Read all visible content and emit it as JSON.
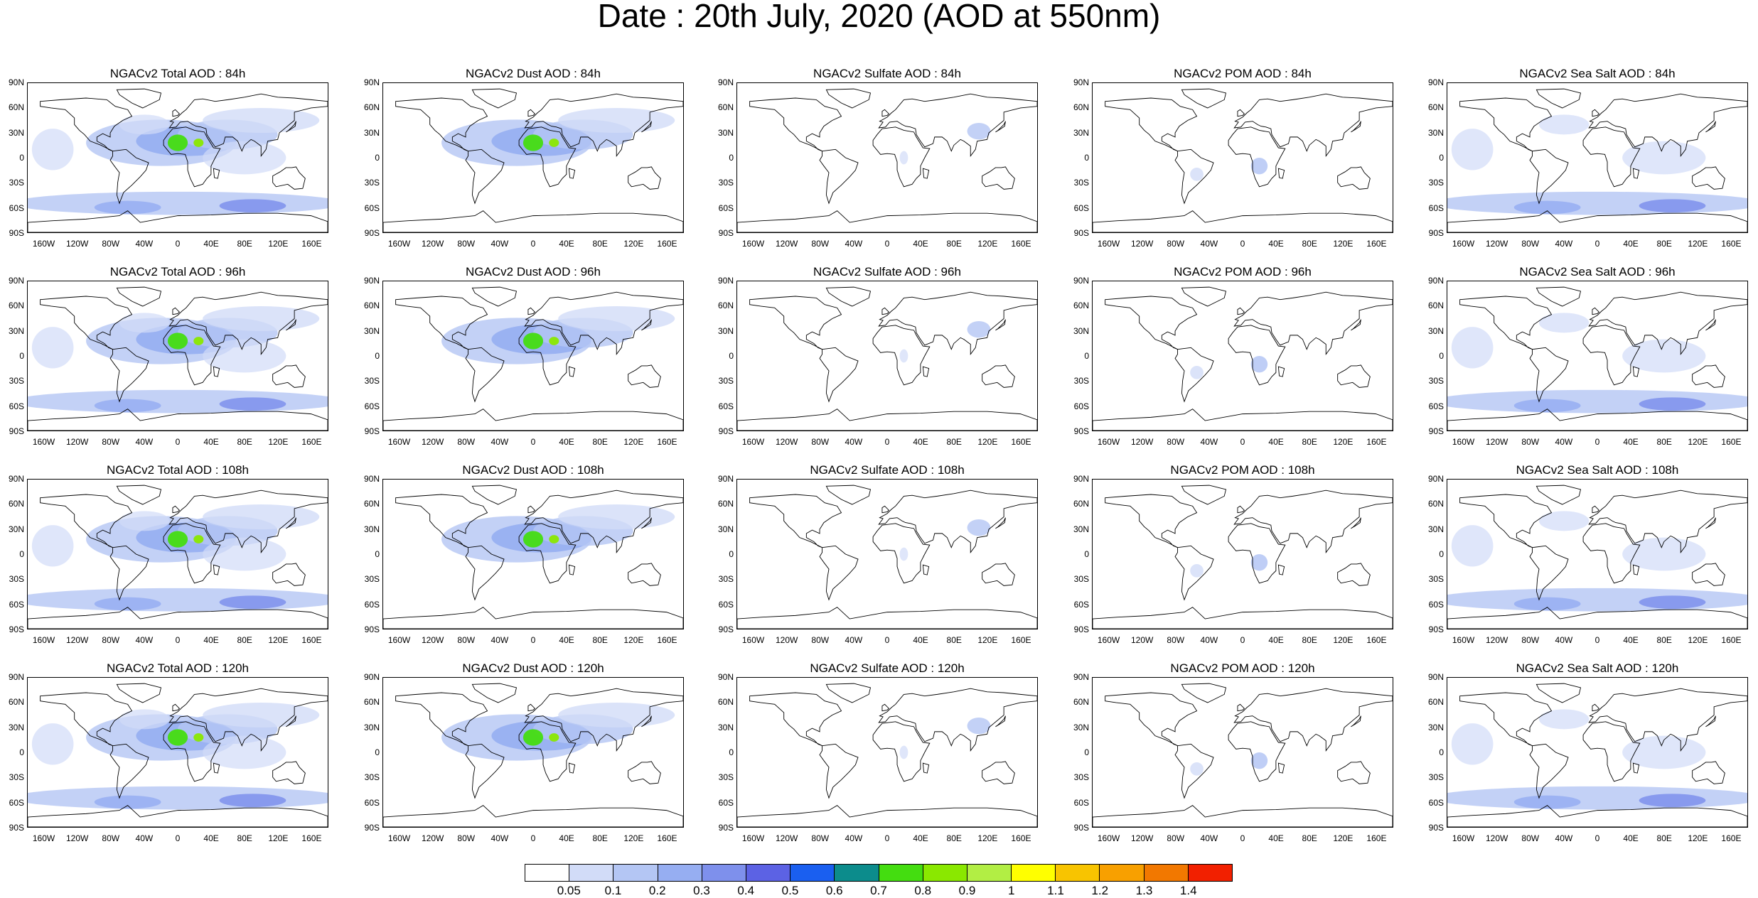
{
  "title": "Date : 20th July, 2020 (AOD at 550nm)",
  "lat_labels": [
    "90N",
    "60N",
    "30N",
    "0",
    "30S",
    "60S",
    "90S"
  ],
  "lon_labels": [
    "160W",
    "120W",
    "80W",
    "40W",
    "0",
    "40E",
    "80E",
    "120E",
    "160E"
  ],
  "panels": [
    [
      "NGACv2 Total AOD : 84h",
      "NGACv2 Dust AOD : 84h",
      "NGACv2 Sulfate AOD : 84h",
      "NGACv2 POM AOD : 84h",
      "NGACv2 Sea Salt AOD : 84h"
    ],
    [
      "NGACv2 Total AOD : 96h",
      "NGACv2 Dust AOD : 96h",
      "NGACv2 Sulfate AOD : 96h",
      "NGACv2 POM AOD : 96h",
      "NGACv2 Sea Salt AOD : 96h"
    ],
    [
      "NGACv2 Total AOD : 108h",
      "NGACv2 Dust AOD : 108h",
      "NGACv2 Sulfate AOD : 108h",
      "NGACv2 POM AOD : 108h",
      "NGACv2 Sea Salt AOD : 108h"
    ],
    [
      "NGACv2 Total AOD : 120h",
      "NGACv2 Dust AOD : 120h",
      "NGACv2 Sulfate AOD : 120h",
      "NGACv2 POM AOD : 120h",
      "NGACv2 Sea Salt  AOD : 120h"
    ]
  ],
  "colorbar": {
    "labels": [
      "0.05",
      "0.1",
      "0.2",
      "0.3",
      "0.4",
      "0.5",
      "0.6",
      "0.7",
      "0.8",
      "0.9",
      "1",
      "1.1",
      "1.2",
      "1.3",
      "1.4"
    ],
    "colors": [
      "#ffffff",
      "#d2dcf8",
      "#b4c6f4",
      "#96aef2",
      "#7e90ec",
      "#5c62e4",
      "#1a5ff0",
      "#0c8c8c",
      "#44dd10",
      "#8ae800",
      "#b2ee44",
      "#ffff00",
      "#f8c400",
      "#f8a000",
      "#f27800",
      "#f22000"
    ]
  }
}
